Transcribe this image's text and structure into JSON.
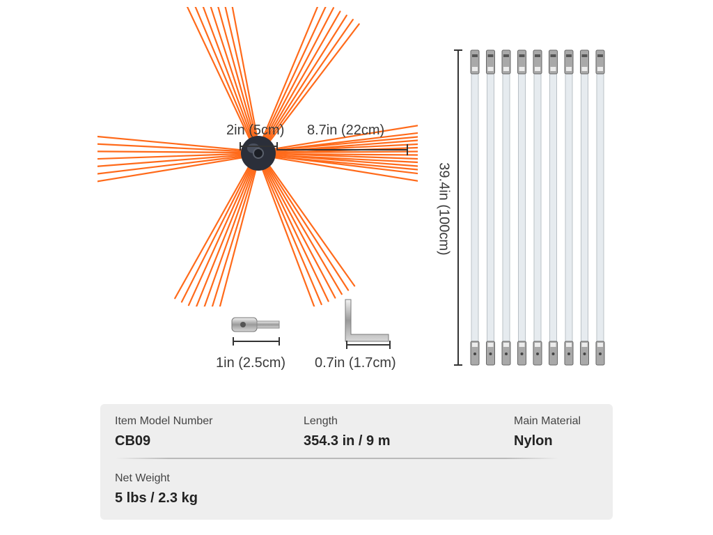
{
  "dimensions": {
    "hub_width": "2in (5cm)",
    "bristle_length": "8.7in (22cm)",
    "rod_length": "39.4in (100cm)",
    "adapter_length": "1in (2.5cm)",
    "wrench_length": "0.7in (1.7cm)"
  },
  "specs": {
    "model_label": "Item Model Number",
    "model_value": "CB09",
    "length_label": "Length",
    "length_value": "354.3 in / 9 m",
    "material_label": "Main Material",
    "material_value": "Nylon",
    "weight_label": "Net Weight",
    "weight_value": "5 lbs / 2.3 kg"
  },
  "colors": {
    "bristle": "#ff6a1a",
    "hub": "#2b2f3a",
    "rod": "#e6ebef",
    "card_bg": "#eeeeee"
  }
}
